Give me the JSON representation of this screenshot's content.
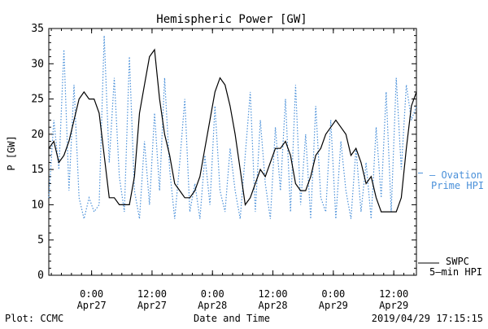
{
  "chart_data": {
    "type": "line",
    "title": "Hemispheric Power [GW]",
    "ylabel": "P [GW]",
    "xlabel": "Date and Time",
    "ylim": [
      0,
      35
    ],
    "yticks": [
      0,
      5,
      10,
      15,
      20,
      25,
      30,
      35
    ],
    "xlim": [
      "2019-04-26T15:30",
      "2019-04-29T16:30"
    ],
    "xticks": [
      {
        "t": "2019-04-27T00:00",
        "line1": "0:00",
        "line2": "Apr27"
      },
      {
        "t": "2019-04-27T12:00",
        "line1": "12:00",
        "line2": "Apr27"
      },
      {
        "t": "2019-04-28T00:00",
        "line1": "0:00",
        "line2": "Apr28"
      },
      {
        "t": "2019-04-28T12:00",
        "line1": "12:00",
        "line2": "Apr28"
      },
      {
        "t": "2019-04-29T00:00",
        "line1": "0:00",
        "line2": "Apr29"
      },
      {
        "t": "2019-04-29T12:00",
        "line1": "12:00",
        "line2": "Apr29"
      }
    ],
    "grid": false,
    "legend": "right",
    "series": [
      {
        "name_lines": [
          "— Ovation",
          "Prime HPI"
        ],
        "style": "dotted",
        "color": "#4a90d9",
        "x": [
          "2019-04-26T15:30",
          "2019-04-26T16:30",
          "2019-04-26T17:30",
          "2019-04-26T18:30",
          "2019-04-26T19:30",
          "2019-04-26T20:30",
          "2019-04-26T21:30",
          "2019-04-26T22:30",
          "2019-04-26T23:30",
          "2019-04-27T00:30",
          "2019-04-27T01:30",
          "2019-04-27T02:30",
          "2019-04-27T03:30",
          "2019-04-27T04:30",
          "2019-04-27T05:30",
          "2019-04-27T06:30",
          "2019-04-27T07:30",
          "2019-04-27T08:30",
          "2019-04-27T09:30",
          "2019-04-27T10:30",
          "2019-04-27T11:30",
          "2019-04-27T12:30",
          "2019-04-27T13:30",
          "2019-04-27T14:30",
          "2019-04-27T15:30",
          "2019-04-27T16:30",
          "2019-04-27T17:30",
          "2019-04-27T18:30",
          "2019-04-27T19:30",
          "2019-04-27T20:30",
          "2019-04-27T21:30",
          "2019-04-27T22:30",
          "2019-04-27T23:30",
          "2019-04-28T00:30",
          "2019-04-28T01:30",
          "2019-04-28T02:30",
          "2019-04-28T03:30",
          "2019-04-28T04:30",
          "2019-04-28T05:30",
          "2019-04-28T06:30",
          "2019-04-28T07:30",
          "2019-04-28T08:30",
          "2019-04-28T09:30",
          "2019-04-28T10:30",
          "2019-04-28T11:30",
          "2019-04-28T12:30",
          "2019-04-28T13:30",
          "2019-04-28T14:30",
          "2019-04-28T15:30",
          "2019-04-28T16:30",
          "2019-04-28T17:30",
          "2019-04-28T18:30",
          "2019-04-28T19:30",
          "2019-04-28T20:30",
          "2019-04-28T21:30",
          "2019-04-28T22:30",
          "2019-04-28T23:30",
          "2019-04-29T00:30",
          "2019-04-29T01:30",
          "2019-04-29T02:30",
          "2019-04-29T03:30",
          "2019-04-29T04:30",
          "2019-04-29T05:30",
          "2019-04-29T06:30",
          "2019-04-29T07:30",
          "2019-04-29T08:30",
          "2019-04-29T09:30",
          "2019-04-29T10:30",
          "2019-04-29T11:30",
          "2019-04-29T12:30",
          "2019-04-29T13:30",
          "2019-04-29T14:30",
          "2019-04-29T15:30",
          "2019-04-29T16:30"
        ],
        "y": [
          11,
          22,
          15,
          32,
          12,
          27,
          11,
          8,
          11,
          9,
          10,
          34,
          16,
          28,
          14,
          9,
          31,
          12,
          8,
          19,
          10,
          23,
          12,
          28,
          15,
          8,
          16,
          25,
          9,
          13,
          8,
          17,
          10,
          24,
          12,
          9,
          18,
          12,
          8,
          17,
          26,
          9,
          22,
          13,
          8,
          21,
          12,
          25,
          9,
          27,
          10,
          20,
          8,
          24,
          11,
          9,
          22,
          8,
          19,
          12,
          8,
          18,
          9,
          16,
          8,
          21,
          11,
          26,
          9,
          28,
          15,
          27,
          22,
          24
        ]
      },
      {
        "name_lines": [
          "SWPC",
          "5—min HPI"
        ],
        "style": "solid",
        "color": "#000000",
        "x": [
          "2019-04-26T15:30",
          "2019-04-26T16:30",
          "2019-04-26T17:30",
          "2019-04-26T18:30",
          "2019-04-26T19:30",
          "2019-04-26T20:30",
          "2019-04-26T21:30",
          "2019-04-26T22:30",
          "2019-04-26T23:30",
          "2019-04-27T00:30",
          "2019-04-27T01:30",
          "2019-04-27T02:30",
          "2019-04-27T03:30",
          "2019-04-27T04:30",
          "2019-04-27T05:30",
          "2019-04-27T06:30",
          "2019-04-27T07:30",
          "2019-04-27T08:30",
          "2019-04-27T09:30",
          "2019-04-27T10:30",
          "2019-04-27T11:30",
          "2019-04-27T12:30",
          "2019-04-27T13:30",
          "2019-04-27T14:30",
          "2019-04-27T15:30",
          "2019-04-27T16:30",
          "2019-04-27T17:30",
          "2019-04-27T18:30",
          "2019-04-27T19:30",
          "2019-04-27T20:30",
          "2019-04-27T21:30",
          "2019-04-27T22:30",
          "2019-04-27T23:30",
          "2019-04-28T00:30",
          "2019-04-28T01:30",
          "2019-04-28T02:30",
          "2019-04-28T03:30",
          "2019-04-28T04:30",
          "2019-04-28T05:30",
          "2019-04-28T06:30",
          "2019-04-28T07:30",
          "2019-04-28T08:30",
          "2019-04-28T09:30",
          "2019-04-28T10:30",
          "2019-04-28T11:30",
          "2019-04-28T12:30",
          "2019-04-28T13:30",
          "2019-04-28T14:30",
          "2019-04-28T15:30",
          "2019-04-28T16:30",
          "2019-04-28T17:30",
          "2019-04-28T18:30",
          "2019-04-28T19:30",
          "2019-04-28T20:30",
          "2019-04-28T21:30",
          "2019-04-28T22:30",
          "2019-04-28T23:30",
          "2019-04-29T00:30",
          "2019-04-29T01:30",
          "2019-04-29T02:30",
          "2019-04-29T03:30",
          "2019-04-29T04:30",
          "2019-04-29T05:30",
          "2019-04-29T06:30",
          "2019-04-29T07:30",
          "2019-04-29T08:30",
          "2019-04-29T09:30",
          "2019-04-29T10:30",
          "2019-04-29T11:30",
          "2019-04-29T12:30",
          "2019-04-29T13:30",
          "2019-04-29T14:30",
          "2019-04-29T15:30",
          "2019-04-29T16:30"
        ],
        "y": [
          18,
          19,
          16,
          17,
          19,
          22,
          25,
          26,
          25,
          25,
          23,
          17,
          11,
          11,
          10,
          10,
          10,
          14,
          23,
          27,
          31,
          32,
          25,
          20,
          17,
          13,
          12,
          11,
          11,
          12,
          14,
          18,
          22,
          26,
          28,
          27,
          24,
          20,
          15,
          10,
          11,
          13,
          15,
          14,
          16,
          18,
          18,
          19,
          17,
          13,
          12,
          12,
          14,
          17,
          18,
          20,
          21,
          22,
          21,
          20,
          17,
          18,
          16,
          13,
          14,
          11,
          9,
          9,
          9,
          9,
          11,
          18,
          24,
          26
        ]
      }
    ]
  },
  "footer": {
    "left": "Plot: CCMC",
    "center": "Date and Time",
    "right": "2019/04/29 17:15:15"
  }
}
